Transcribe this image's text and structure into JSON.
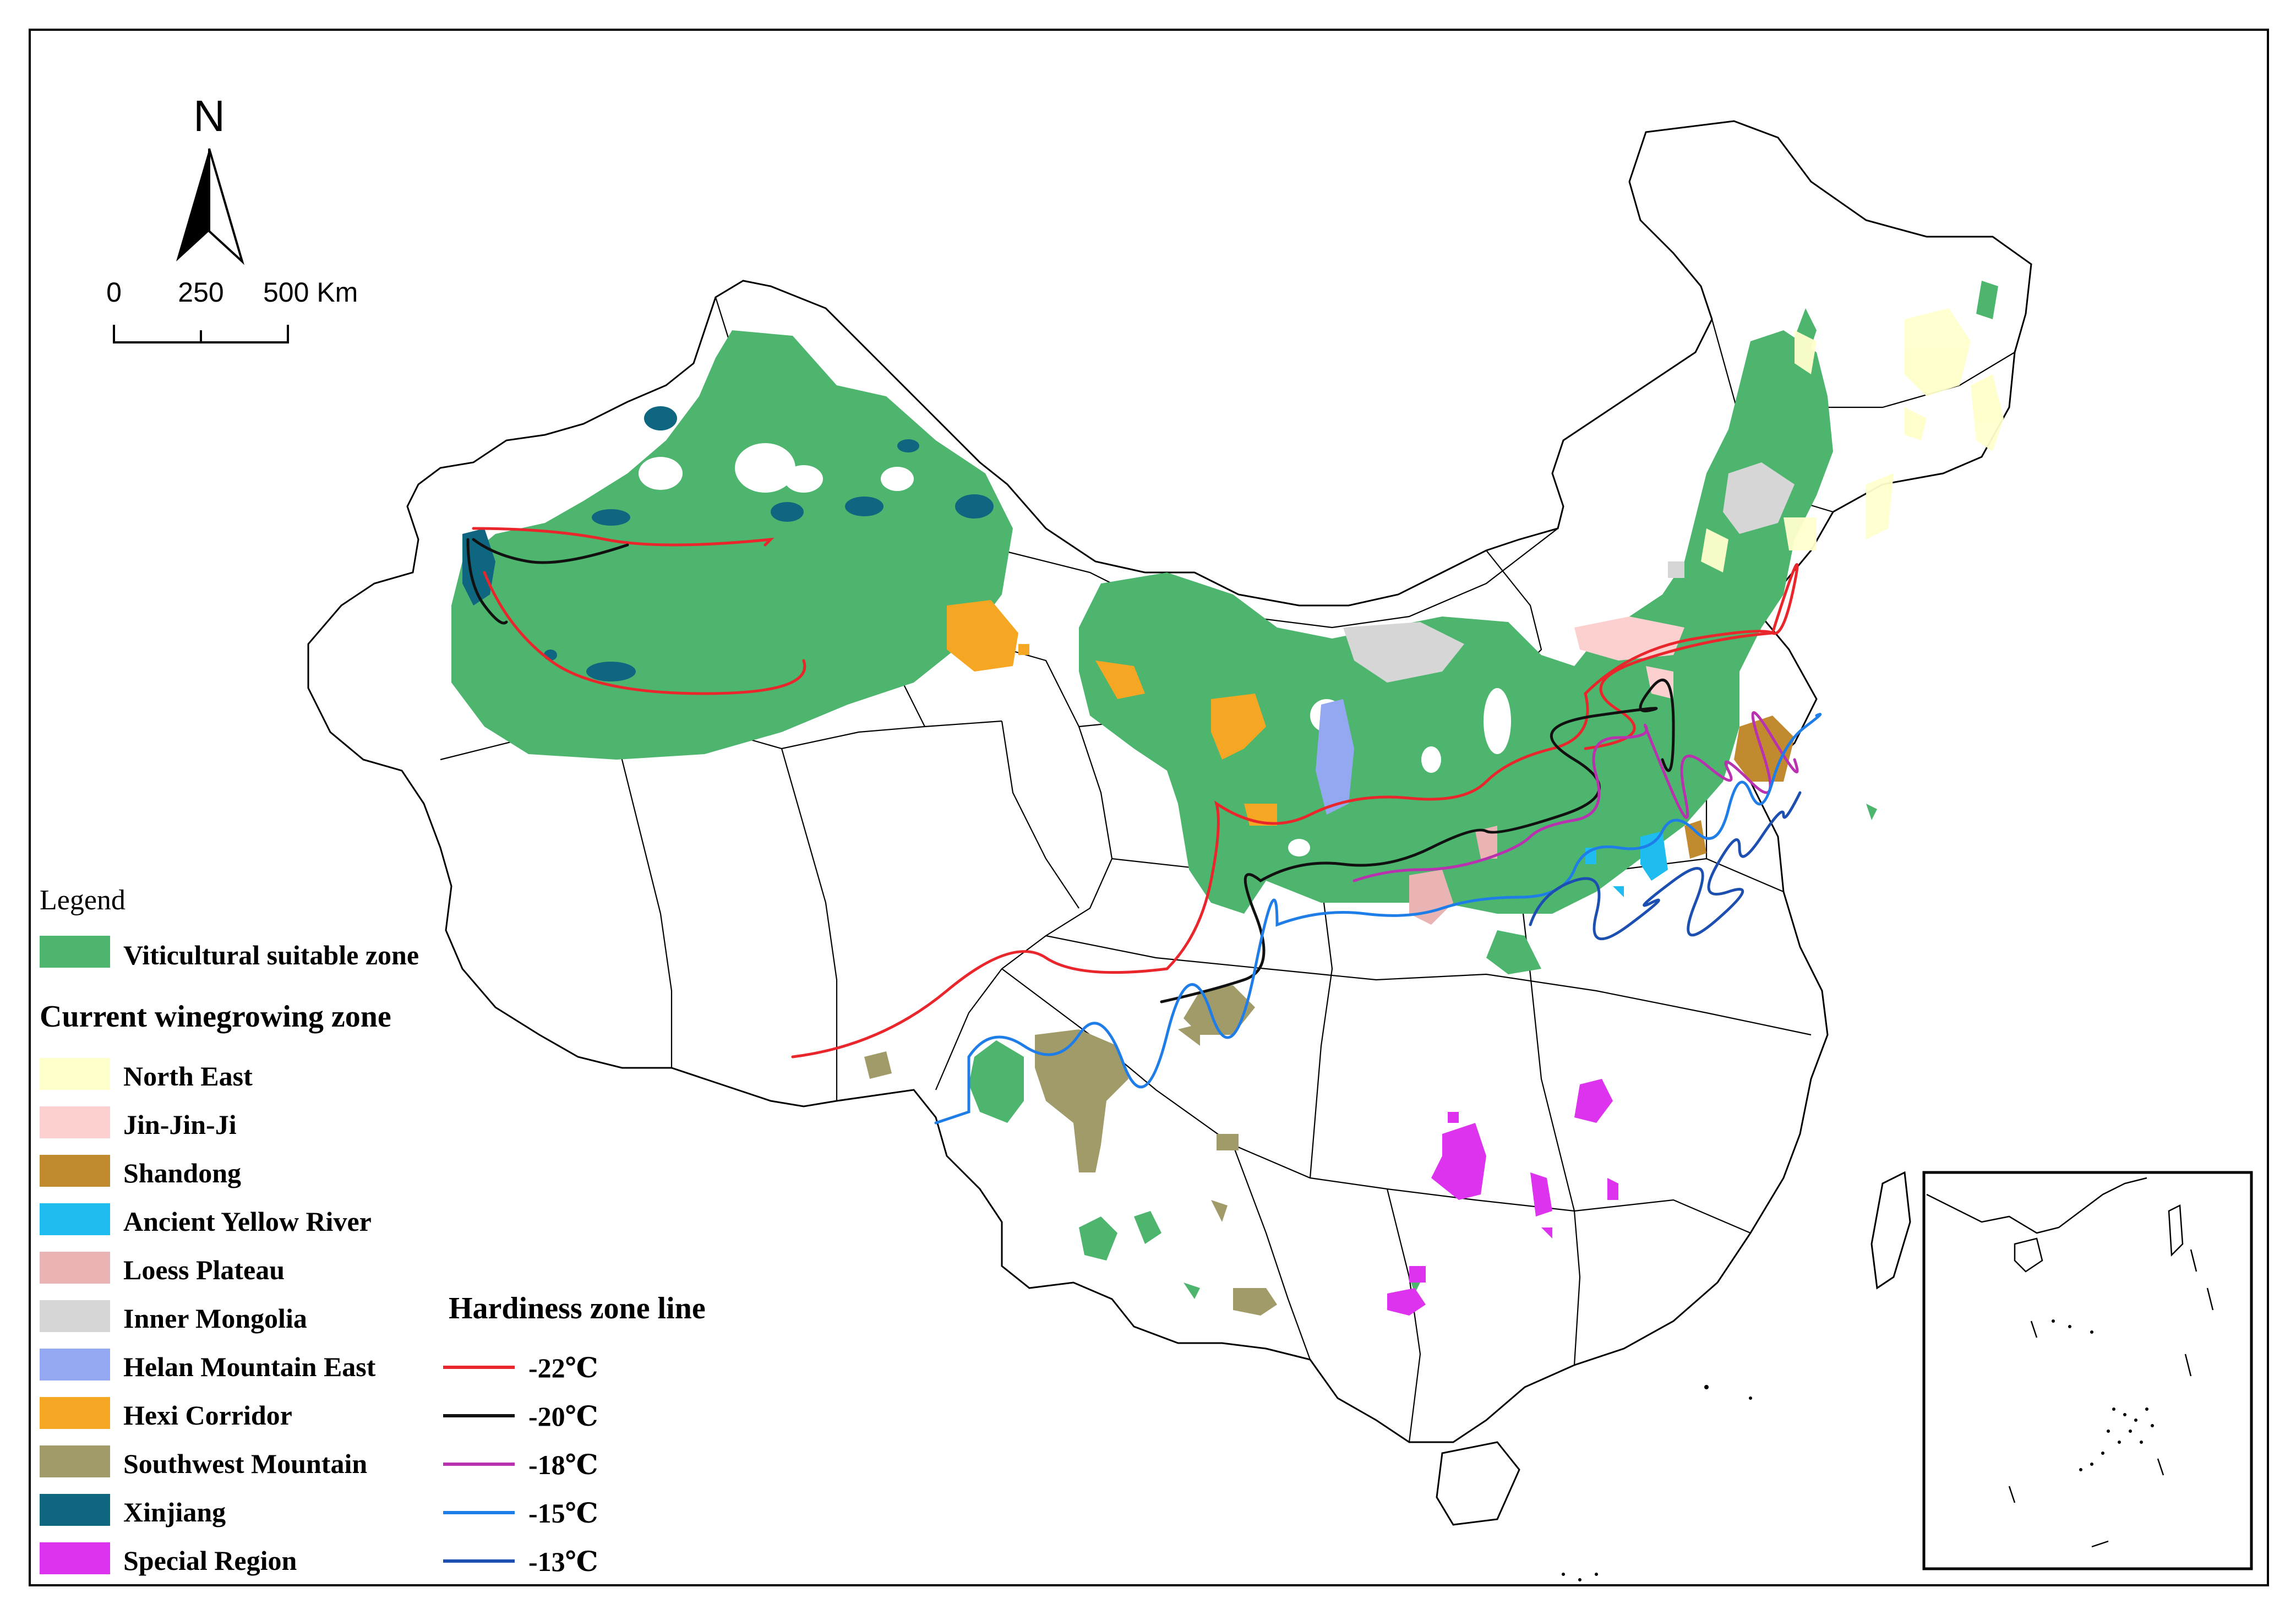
{
  "north_arrow": {
    "letter": "N"
  },
  "scale_bar": {
    "ticks": [
      "0",
      "250",
      "500 Km"
    ]
  },
  "legend": {
    "title": "Legend",
    "suitable_label": "Viticultural suitable zone",
    "suitable_color": "#4db56e",
    "zones_heading": "Current winegrowing zone",
    "zones": [
      {
        "name": "North East",
        "color": "#ffffcc"
      },
      {
        "name": "Jin-Jin-Ji",
        "color": "#fdd0d0"
      },
      {
        "name": "Shandong",
        "color": "#c28a2e"
      },
      {
        "name": "Ancient Yellow River",
        "color": "#1fbcf0"
      },
      {
        "name": "Loess Plateau",
        "color": "#eab4b4"
      },
      {
        "name": "Inner Mongolia",
        "color": "#d6d6d6"
      },
      {
        "name": "Helan Mountain East",
        "color": "#94a8f2"
      },
      {
        "name": "Hexi Corridor",
        "color": "#f5a623"
      },
      {
        "name": "Southwest Mountain",
        "color": "#a09b68"
      },
      {
        "name": "Xinjiang",
        "color": "#0f6680"
      },
      {
        "name": "Special Region",
        "color": "#dd33ee"
      }
    ],
    "hardiness_heading": "Hardiness zone line",
    "hardiness_lines": [
      {
        "label": "-22℃",
        "color": "#e8262b"
      },
      {
        "label": "-20℃",
        "color": "#111111"
      },
      {
        "label": "-18℃",
        "color": "#b832b0"
      },
      {
        "label": "-15℃",
        "color": "#1f7de8"
      },
      {
        "label": "-13℃",
        "color": "#1c4fb0"
      }
    ]
  },
  "colors": {
    "boundary": "#000000",
    "background": "#ffffff"
  }
}
